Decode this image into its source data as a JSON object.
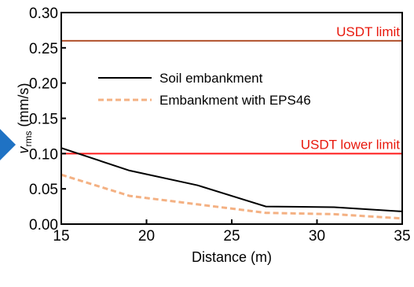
{
  "chart_data": {
    "type": "line",
    "xlabel": "Distance (m)",
    "ylabel_main": "v",
    "ylabel_sub": "rms",
    "ylabel_unit": " (mm/s)",
    "xlim": [
      15,
      35
    ],
    "ylim": [
      0,
      0.3
    ],
    "xticks": [
      15,
      20,
      25,
      30,
      35
    ],
    "yticks": [
      0.0,
      0.05,
      0.1,
      0.15,
      0.2,
      0.25,
      0.3
    ],
    "xtick_labels": [
      "15",
      "20",
      "25",
      "30",
      "35"
    ],
    "ytick_labels": [
      "0.00",
      "0.05",
      "0.10",
      "0.15",
      "0.20",
      "0.25",
      "0.30"
    ],
    "series": [
      {
        "name": "Soil embankment",
        "color": "#000000",
        "style": "solid",
        "x": [
          15,
          19,
          23,
          27,
          31,
          35
        ],
        "y": [
          0.108,
          0.076,
          0.055,
          0.025,
          0.024,
          0.018
        ]
      },
      {
        "name": "Embankment with EPS46",
        "color": "#f4b183",
        "style": "dashed",
        "x": [
          15,
          19,
          23,
          27,
          31,
          35
        ],
        "y": [
          0.07,
          0.04,
          0.028,
          0.016,
          0.014,
          0.008
        ]
      }
    ],
    "reference_lines": [
      {
        "label": "USDT limit",
        "y": 0.26,
        "color": "#b0502b",
        "label_color": "#e8180c"
      },
      {
        "label": "USDT lower limit",
        "y": 0.1,
        "color": "#ff1a1a",
        "label_color": "#e8180c"
      }
    ],
    "legend_position": "upper-center",
    "grid": false
  },
  "decoration": {
    "arrow_color": "#1f72c4"
  }
}
